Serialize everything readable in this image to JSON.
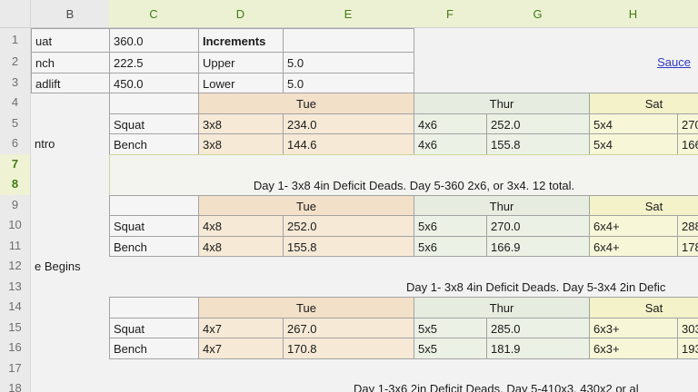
{
  "sheet": {
    "columns": [
      {
        "label": "B",
        "selected": false
      },
      {
        "label": "C",
        "selected": true
      },
      {
        "label": "D",
        "selected": true
      },
      {
        "label": "E",
        "selected": true
      },
      {
        "label": "F",
        "selected": true
      },
      {
        "label": "G",
        "selected": true
      },
      {
        "label": "H",
        "selected": true
      },
      {
        "label": "",
        "selected": true
      }
    ],
    "rows": [
      {
        "label": "1",
        "selected": false
      },
      {
        "label": "2",
        "selected": false
      },
      {
        "label": "3",
        "selected": false
      },
      {
        "label": "4",
        "selected": false
      },
      {
        "label": "5",
        "selected": false
      },
      {
        "label": "6",
        "selected": false
      },
      {
        "label": "7",
        "selected": true
      },
      {
        "label": "8",
        "selected": true
      },
      {
        "label": "9",
        "selected": false
      },
      {
        "label": "10",
        "selected": false
      },
      {
        "label": "11",
        "selected": false
      },
      {
        "label": "12",
        "selected": false
      },
      {
        "label": "13",
        "selected": false
      },
      {
        "label": "14",
        "selected": false
      },
      {
        "label": "15",
        "selected": false
      },
      {
        "label": "16",
        "selected": false
      },
      {
        "label": "17",
        "selected": false
      },
      {
        "label": "18",
        "selected": false
      }
    ]
  },
  "colors": {
    "selected_header_text": "#3e7c15",
    "tue_header": "#f2e0c8",
    "tue_data": "#f6e9d6",
    "thur_header": "#e6ede0",
    "thur_data": "#ebf1e5",
    "sat_header": "#f3f2c9",
    "sat_data": "#f7f6d7",
    "selection_border": "#cbd79b",
    "link": "#2e39c7"
  },
  "cells": [
    {
      "name": "cell-B1",
      "col": "B",
      "row": 1,
      "text": "uat",
      "fill": "bordered"
    },
    {
      "name": "cell-C1",
      "col": "C",
      "row": 1,
      "text": "360.0",
      "fill": "bordered"
    },
    {
      "name": "cell-D1",
      "col": "D",
      "row": 1,
      "text": "Increments",
      "fill": "bordered",
      "bold": true
    },
    {
      "name": "cell-E1",
      "col": "E",
      "row": 1,
      "text": "",
      "fill": "bordered"
    },
    {
      "name": "cell-B2",
      "col": "B",
      "row": 2,
      "text": "nch",
      "fill": "bordered"
    },
    {
      "name": "cell-C2",
      "col": "C",
      "row": 2,
      "text": "222.5",
      "fill": "bordered"
    },
    {
      "name": "cell-D2",
      "col": "D",
      "row": 2,
      "text": "Upper",
      "fill": "bordered"
    },
    {
      "name": "cell-E2",
      "col": "E",
      "row": 2,
      "text": "5.0",
      "fill": "bordered"
    },
    {
      "name": "sauce-link",
      "col": "H",
      "row": 2,
      "text": "Sauce",
      "fill": "none",
      "align": "right",
      "link": true,
      "wOverride": 115
    },
    {
      "name": "cell-B3",
      "col": "B",
      "row": 3,
      "text": "adlift",
      "fill": "bordered"
    },
    {
      "name": "cell-C3",
      "col": "C",
      "row": 3,
      "text": "450.0",
      "fill": "bordered"
    },
    {
      "name": "cell-D3",
      "col": "D",
      "row": 3,
      "text": "Lower",
      "fill": "bordered"
    },
    {
      "name": "cell-E3",
      "col": "E",
      "row": 3,
      "text": "5.0",
      "fill": "bordered"
    },
    {
      "name": "cell-C4",
      "col": "C",
      "row": 4,
      "text": "",
      "fill": "bordered"
    },
    {
      "name": "day-header-tue-1",
      "col": "D",
      "row": 4,
      "colspan": 2,
      "text": "Tue",
      "fill": "tueHead",
      "align": "center"
    },
    {
      "name": "day-header-thur-1",
      "col": "F",
      "row": 4,
      "colspan": 2,
      "text": "Thur",
      "fill": "thurHead",
      "align": "center"
    },
    {
      "name": "day-header-sat-1",
      "col": "H",
      "row": 4,
      "colspan": 2,
      "text": "Sat",
      "fill": "satHead",
      "align": "center"
    },
    {
      "name": "cell-C5",
      "col": "C",
      "row": 5,
      "text": "Squat",
      "fill": "bordered"
    },
    {
      "name": "cell-D5",
      "col": "D",
      "row": 5,
      "text": "3x8",
      "fill": "tueData"
    },
    {
      "name": "cell-E5",
      "col": "E",
      "row": 5,
      "text": "234.0",
      "fill": "tueData"
    },
    {
      "name": "cell-F5",
      "col": "F",
      "row": 5,
      "text": "4x6",
      "fill": "thurData"
    },
    {
      "name": "cell-G5",
      "col": "G",
      "row": 5,
      "text": "252.0",
      "fill": "thurData"
    },
    {
      "name": "cell-H5",
      "col": "H",
      "row": 5,
      "text": "5x4",
      "fill": "satData"
    },
    {
      "name": "cell-I5",
      "col": "I",
      "row": 5,
      "text": "270",
      "fill": "satData"
    },
    {
      "name": "cell-B6",
      "col": "B",
      "row": 6,
      "text": "ntro",
      "fill": "none"
    },
    {
      "name": "cell-C6",
      "col": "C",
      "row": 6,
      "text": "Bench",
      "fill": "bordered"
    },
    {
      "name": "cell-D6",
      "col": "D",
      "row": 6,
      "text": "3x8",
      "fill": "tueData"
    },
    {
      "name": "cell-E6",
      "col": "E",
      "row": 6,
      "text": "144.6",
      "fill": "tueData"
    },
    {
      "name": "cell-F6",
      "col": "F",
      "row": 6,
      "text": "4x6",
      "fill": "thurData"
    },
    {
      "name": "cell-G6",
      "col": "G",
      "row": 6,
      "text": "155.8",
      "fill": "thurData"
    },
    {
      "name": "cell-H6",
      "col": "H",
      "row": 6,
      "text": "5x4",
      "fill": "satData"
    },
    {
      "name": "cell-I6",
      "col": "I",
      "row": 6,
      "text": "166",
      "fill": "satData"
    },
    {
      "name": "selected-note-cell",
      "col": "C",
      "row": 7,
      "colspan": 7,
      "rowspan": 2,
      "text": "Day 1- 3x8 4in Deficit Deads. Day 5-360 2x6, or 3x4. 12 total.",
      "fill": "selection",
      "align": "center"
    },
    {
      "name": "cell-C9",
      "col": "C",
      "row": 9,
      "text": "",
      "fill": "bordered"
    },
    {
      "name": "day-header-tue-2",
      "col": "D",
      "row": 9,
      "colspan": 2,
      "text": "Tue",
      "fill": "tueHead",
      "align": "center"
    },
    {
      "name": "day-header-thur-2",
      "col": "F",
      "row": 9,
      "colspan": 2,
      "text": "Thur",
      "fill": "thurHead",
      "align": "center"
    },
    {
      "name": "day-header-sat-2",
      "col": "H",
      "row": 9,
      "colspan": 2,
      "text": "Sat",
      "fill": "satHead",
      "align": "center"
    },
    {
      "name": "cell-C10",
      "col": "C",
      "row": 10,
      "text": "Squat",
      "fill": "bordered"
    },
    {
      "name": "cell-D10",
      "col": "D",
      "row": 10,
      "text": "4x8",
      "fill": "tueData"
    },
    {
      "name": "cell-E10",
      "col": "E",
      "row": 10,
      "text": "252.0",
      "fill": "tueData"
    },
    {
      "name": "cell-F10",
      "col": "F",
      "row": 10,
      "text": "5x6",
      "fill": "thurData"
    },
    {
      "name": "cell-G10",
      "col": "G",
      "row": 10,
      "text": "270.0",
      "fill": "thurData"
    },
    {
      "name": "cell-H10",
      "col": "H",
      "row": 10,
      "text": "6x4+",
      "fill": "satData"
    },
    {
      "name": "cell-I10",
      "col": "I",
      "row": 10,
      "text": "288",
      "fill": "satData"
    },
    {
      "name": "cell-C11",
      "col": "C",
      "row": 11,
      "text": "Bench",
      "fill": "bordered"
    },
    {
      "name": "cell-D11",
      "col": "D",
      "row": 11,
      "text": "4x8",
      "fill": "tueData"
    },
    {
      "name": "cell-E11",
      "col": "E",
      "row": 11,
      "text": "155.8",
      "fill": "tueData"
    },
    {
      "name": "cell-F11",
      "col": "F",
      "row": 11,
      "text": "5x6",
      "fill": "thurData"
    },
    {
      "name": "cell-G11",
      "col": "G",
      "row": 11,
      "text": "166.9",
      "fill": "thurData"
    },
    {
      "name": "cell-H11",
      "col": "H",
      "row": 11,
      "text": "6x4+",
      "fill": "satData"
    },
    {
      "name": "cell-I11",
      "col": "I",
      "row": 11,
      "text": "178",
      "fill": "satData"
    },
    {
      "name": "cell-B12",
      "col": "B",
      "row": 12,
      "text": "e Begins",
      "fill": "none"
    },
    {
      "name": "note-cycle-2",
      "col": "C",
      "row": 13,
      "text": "Day 1- 3x8 4in Deficit Deads. Day 5-3x4 2in Defic",
      "fill": "none",
      "xOverride": 443,
      "wOverride": 400,
      "decor": true
    },
    {
      "name": "cell-C14",
      "col": "C",
      "row": 14,
      "text": "",
      "fill": "bordered"
    },
    {
      "name": "day-header-tue-3",
      "col": "D",
      "row": 14,
      "colspan": 2,
      "text": "Tue",
      "fill": "tueHead",
      "align": "center"
    },
    {
      "name": "day-header-thur-3",
      "col": "F",
      "row": 14,
      "colspan": 2,
      "text": "Thur",
      "fill": "thurHead",
      "align": "center"
    },
    {
      "name": "day-header-sat-3",
      "col": "H",
      "row": 14,
      "colspan": 2,
      "text": "Sat",
      "fill": "satHead",
      "align": "center"
    },
    {
      "name": "cell-C15",
      "col": "C",
      "row": 15,
      "text": "Squat",
      "fill": "bordered"
    },
    {
      "name": "cell-D15",
      "col": "D",
      "row": 15,
      "text": "4x7",
      "fill": "tueData"
    },
    {
      "name": "cell-E15",
      "col": "E",
      "row": 15,
      "text": "267.0",
      "fill": "tueData"
    },
    {
      "name": "cell-F15",
      "col": "F",
      "row": 15,
      "text": "5x5",
      "fill": "thurData"
    },
    {
      "name": "cell-G15",
      "col": "G",
      "row": 15,
      "text": "285.0",
      "fill": "thurData"
    },
    {
      "name": "cell-H15",
      "col": "H",
      "row": 15,
      "text": "6x3+",
      "fill": "satData"
    },
    {
      "name": "cell-I15",
      "col": "I",
      "row": 15,
      "text": "303",
      "fill": "satData"
    },
    {
      "name": "cell-C16",
      "col": "C",
      "row": 16,
      "text": "Bench",
      "fill": "bordered"
    },
    {
      "name": "cell-D16",
      "col": "D",
      "row": 16,
      "text": "4x7",
      "fill": "tueData"
    },
    {
      "name": "cell-E16",
      "col": "E",
      "row": 16,
      "text": "170.8",
      "fill": "tueData"
    },
    {
      "name": "cell-F16",
      "col": "F",
      "row": 16,
      "text": "5x5",
      "fill": "thurData"
    },
    {
      "name": "cell-G16",
      "col": "G",
      "row": 16,
      "text": "181.9",
      "fill": "thurData"
    },
    {
      "name": "cell-H16",
      "col": "H",
      "row": 16,
      "text": "6x3+",
      "fill": "satData"
    },
    {
      "name": "cell-I16",
      "col": "I",
      "row": 16,
      "text": "193",
      "fill": "satData"
    },
    {
      "name": "note-cycle-3",
      "col": "C",
      "row": 18,
      "text": "Day 1-3x6 2in Deficit Deads. Day 5-410x3, 430x2 or al",
      "fill": "none",
      "xOverride": 385,
      "wOverride": 460,
      "decor": true
    }
  ]
}
